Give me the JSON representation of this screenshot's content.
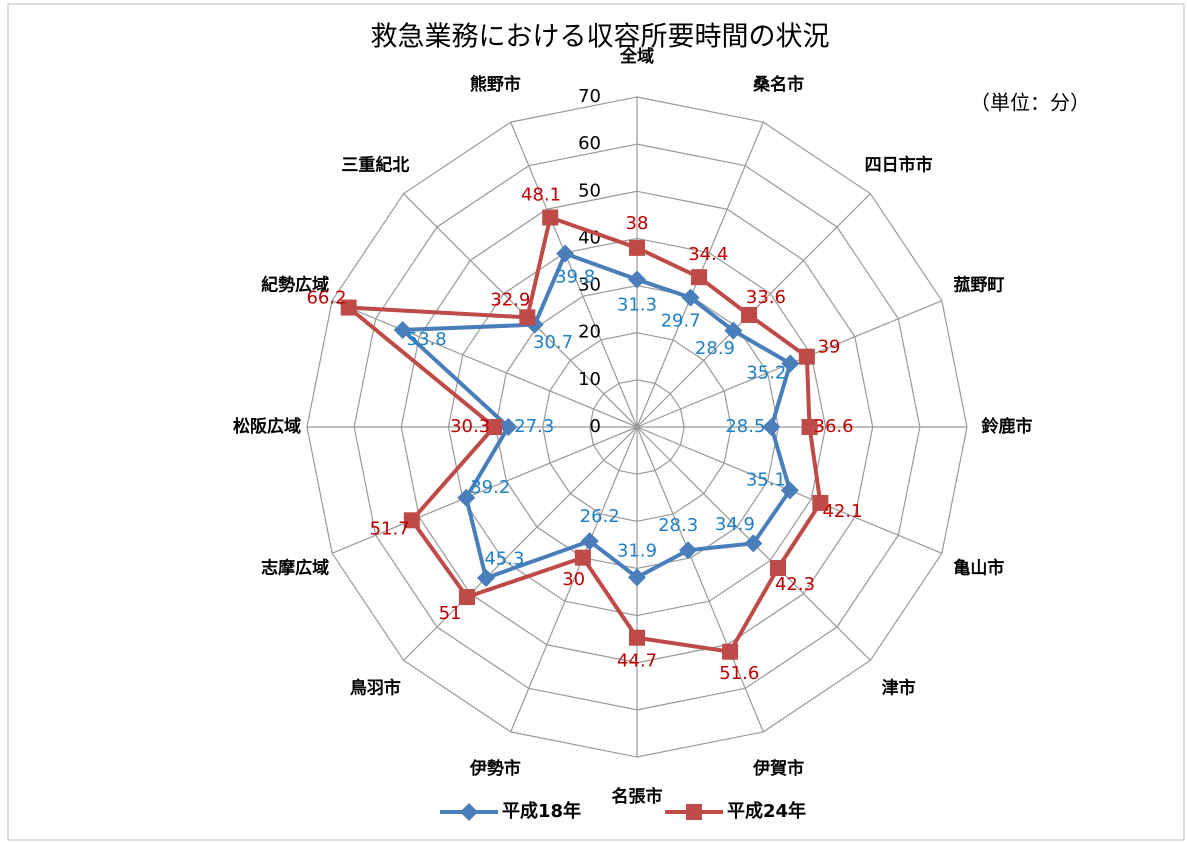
{
  "chart_data": {
    "type": "radar",
    "title": "救急業務における収容所要時間の状況",
    "annotation": "（単位：分）",
    "categories": [
      "全域",
      "桑名市",
      "四日市市",
      "菰野町",
      "鈴鹿市",
      "亀山市",
      "津市",
      "伊賀市",
      "名張市",
      "伊勢市",
      "鳥羽市",
      "志摩広域",
      "松阪広域",
      "紀勢広域",
      "三重紀北",
      "熊野市"
    ],
    "series": [
      {
        "name": "平成18年",
        "color": "#4a7ebb",
        "label_color": "#1f7fc8",
        "marker": "diamond",
        "values": [
          31.3,
          29.7,
          28.9,
          35.2,
          28.5,
          35.1,
          34.9,
          28.3,
          31.9,
          26.2,
          45.3,
          39.2,
          27.3,
          53.8,
          30.7,
          39.8
        ]
      },
      {
        "name": "平成24年",
        "color": "#be4b48",
        "label_color": "#c00000",
        "marker": "square",
        "values": [
          38.0,
          34.4,
          33.6,
          39.0,
          36.6,
          42.1,
          42.3,
          51.6,
          44.7,
          30.0,
          51.0,
          51.7,
          30.3,
          66.2,
          32.9,
          48.1
        ]
      }
    ],
    "ylim": [
      0,
      70
    ],
    "yticks": [
      0,
      10,
      20,
      30,
      40,
      50,
      60,
      70
    ],
    "grid": true,
    "legend": "bottom"
  }
}
